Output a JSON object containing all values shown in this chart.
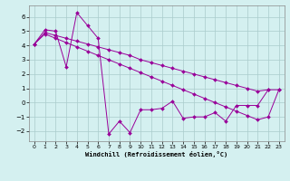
{
  "background_color": "#d4f0f0",
  "line_color": "#990099",
  "grid_color": "#aacccc",
  "xlim": [
    -0.5,
    23.5
  ],
  "ylim": [
    -2.7,
    6.8
  ],
  "xticks": [
    0,
    1,
    2,
    3,
    4,
    5,
    6,
    7,
    8,
    9,
    10,
    11,
    12,
    13,
    14,
    15,
    16,
    17,
    18,
    19,
    20,
    21,
    22,
    23
  ],
  "yticks": [
    -2,
    -1,
    0,
    1,
    2,
    3,
    4,
    5,
    6
  ],
  "xlabel": "Windchill (Refroidissement éolien,°C)",
  "y_jagged": [
    4.1,
    5.1,
    5.0,
    2.5,
    6.3,
    5.4,
    4.5,
    -2.2,
    -1.3,
    -2.1,
    -0.5,
    -0.5,
    -0.4,
    0.1,
    -1.1,
    -1.0,
    -1.0,
    -0.7,
    -1.3,
    -0.2,
    -0.2,
    -0.2,
    0.9,
    null
  ],
  "y_upper": [
    4.1,
    4.9,
    4.7,
    4.5,
    4.3,
    4.1,
    3.9,
    3.7,
    3.5,
    3.3,
    3.0,
    2.8,
    2.6,
    2.4,
    2.2,
    2.0,
    1.8,
    1.6,
    1.4,
    1.2,
    1.0,
    0.8,
    0.9,
    0.9
  ],
  "y_lower": [
    4.1,
    4.8,
    4.5,
    4.2,
    3.9,
    3.6,
    3.3,
    3.0,
    2.7,
    2.4,
    2.1,
    1.8,
    1.5,
    1.2,
    0.9,
    0.6,
    0.3,
    0.0,
    -0.3,
    -0.6,
    -0.9,
    -1.2,
    -1.0,
    0.9
  ]
}
